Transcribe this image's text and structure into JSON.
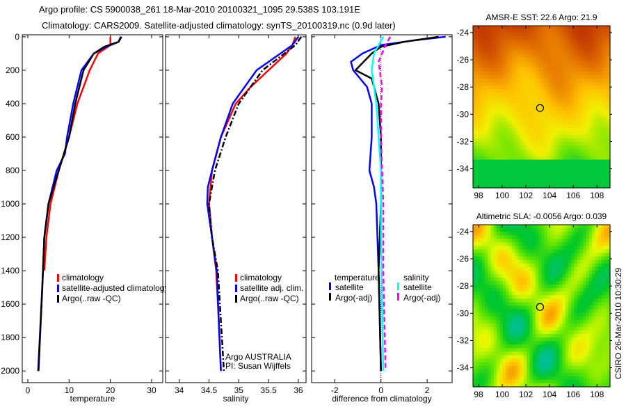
{
  "header": {
    "title_line1": "Argo profile: CS 5900038_261 18-Mar-2010 20100321_1095 29.538S 103.191E",
    "title_line2": "Climatology: CARS2009. Satellite-adjusted climatology: synTS_20100319.nc (0.9d later)"
  },
  "credit": "CSIRO 26-Mar-2010 10:30:29",
  "colors": {
    "red": "#ff0000",
    "blue": "#0000ff",
    "black": "#000000",
    "cyan": "#00ffff",
    "magenta": "#ff00ff"
  },
  "chart_data": [
    {
      "type": "line",
      "id": "temperature",
      "xlabel": "temperature",
      "ylabel": "",
      "xlim": [
        -1.35,
        32.7
      ],
      "ylim": [
        2070,
        -12
      ],
      "xticks": [
        0,
        10,
        20,
        30
      ],
      "yticks": [
        0,
        200,
        400,
        600,
        800,
        1000,
        1200,
        1400,
        1600,
        1800,
        2000
      ],
      "legend": {
        "placement": "lower-center",
        "entries": [
          "climatology",
          "satellite-adjusted climatology",
          "Argo(..raw -QC)"
        ]
      },
      "series": [
        {
          "name": "climatology",
          "color": "#ff0000",
          "style": "solid",
          "depth": [
            0,
            50,
            100,
            200,
            300,
            400,
            600,
            800,
            1000,
            1200,
            1400
          ],
          "values": [
            20,
            20,
            17,
            15,
            13.5,
            12,
            10,
            7.5,
            5.5,
            4.5,
            4
          ]
        },
        {
          "name": "satellite-adjusted climatology",
          "color": "#0000ff",
          "style": "solid",
          "depth": [
            0,
            30,
            60,
            100,
            200,
            400,
            600,
            700,
            800,
            900,
            1000,
            1200,
            1500,
            2000
          ],
          "values": [
            22.5,
            22,
            19,
            16,
            13,
            11,
            9.5,
            9,
            7,
            6,
            5,
            4,
            3.5,
            2.5
          ]
        },
        {
          "name": "Argo(..raw -QC)",
          "color": "#000000",
          "style": "solid",
          "depth": [
            0,
            30,
            60,
            100,
            200,
            400,
            600,
            800,
            1000,
            1200,
            1500,
            2000
          ],
          "values": [
            22.7,
            22,
            18.5,
            16,
            13.5,
            11.5,
            10,
            7.5,
            5,
            4,
            3.5,
            2.6
          ]
        }
      ]
    },
    {
      "type": "line",
      "id": "salinity",
      "xlabel": "salinity",
      "xlim": [
        33.77,
        36.13
      ],
      "ylim": [
        2070,
        -12
      ],
      "xticks": [
        34,
        34.5,
        35,
        35.5,
        36
      ],
      "yticks": [
        0,
        200,
        400,
        600,
        800,
        1000,
        1200,
        1400,
        1600,
        1800,
        2000
      ],
      "legend": {
        "placement": "lower-right",
        "entries": [
          "climatology",
          "satellite adj. clim.",
          "Argo(..raw -QC)"
        ]
      },
      "annotation": [
        "Argo AUSTRALIA",
        "PI: Susan Wijffels"
      ],
      "series": [
        {
          "name": "climatology",
          "color": "#ff0000",
          "style": "solid",
          "depth": [
            0,
            50,
            100,
            200,
            300,
            400,
            600,
            800,
            1000,
            1200,
            1400,
            1600,
            2000
          ],
          "values": [
            35.95,
            35.9,
            35.8,
            35.5,
            35.2,
            34.95,
            34.7,
            34.55,
            34.5,
            34.55,
            34.62,
            34.65,
            34.7
          ]
        },
        {
          "name": "satellite adj. clim.",
          "color": "#0000ff",
          "style": "solid",
          "depth": [
            0,
            50,
            100,
            200,
            300,
            400,
            600,
            800,
            900,
            1000,
            1200,
            1400,
            2000
          ],
          "values": [
            36.0,
            35.9,
            35.7,
            35.3,
            35.1,
            34.9,
            34.7,
            34.55,
            34.48,
            34.47,
            34.55,
            34.63,
            34.7
          ]
        },
        {
          "name": "Argo(..raw -QC)",
          "color": "#000000",
          "style": "dashdot",
          "depth": [
            0,
            50,
            200,
            400,
            600,
            800,
            1000,
            1200,
            1400,
            2000
          ],
          "values": [
            36.05,
            35.95,
            35.4,
            35.0,
            34.78,
            34.6,
            34.5,
            34.55,
            34.65,
            34.75
          ]
        }
      ]
    },
    {
      "type": "line",
      "id": "difference",
      "xlabel": "difference from climatology",
      "xlim": [
        -3,
        3.08
      ],
      "ylim": [
        2070,
        -12
      ],
      "xticks": [
        -2,
        0,
        2
      ],
      "yticks": [
        0,
        200,
        400,
        600,
        800,
        1000,
        1200,
        1400,
        1600,
        1800,
        2000
      ],
      "legend": {
        "placement": "center",
        "groups": [
          {
            "title": "temperature",
            "entries": [
              "satellite",
              "Argo(-adj)"
            ]
          },
          {
            "title": "salinity",
            "entries": [
              "satellite",
              "Argo(-adj)"
            ]
          }
        ]
      },
      "series": [
        {
          "name": "temperature satellite",
          "color": "#0000ff",
          "style": "solid",
          "depth": [
            0,
            20,
            50,
            100,
            150,
            200,
            300,
            400,
            600,
            800,
            900,
            1000,
            1400,
            2000
          ],
          "values": [
            2.8,
            1.5,
            0,
            -0.8,
            -1.3,
            -1.2,
            -0.6,
            -0.4,
            -0.4,
            -0.5,
            -0.3,
            -0.2,
            -0.1,
            0
          ]
        },
        {
          "name": "temperature Argo(-adj)",
          "color": "#000000",
          "style": "solid",
          "depth": [
            0,
            30,
            60,
            100,
            200,
            250,
            400,
            600,
            800,
            1000,
            1400,
            2000
          ],
          "values": [
            2.5,
            1.0,
            0,
            -0.4,
            -1.1,
            -0.4,
            -0.1,
            0,
            0,
            0,
            -0.1,
            0
          ]
        },
        {
          "name": "salinity satellite",
          "color": "#00ffff",
          "style": "solid",
          "depth": [
            0,
            100,
            200,
            400,
            600,
            800,
            1200,
            2000
          ],
          "values": [
            0.1,
            -0.3,
            -0.4,
            -0.2,
            -0.1,
            0,
            0,
            0.1
          ]
        },
        {
          "name": "salinity Argo(-adj)",
          "color": "#ff00ff",
          "style": "dashed",
          "depth": [
            0,
            50,
            150,
            300,
            400,
            600,
            1000,
            1400,
            2000
          ],
          "values": [
            0.4,
            0.2,
            -0.1,
            0.05,
            0,
            0,
            0.1,
            0.1,
            0.2
          ]
        }
      ]
    },
    {
      "type": "heatmap",
      "id": "sst-map",
      "title": "AMSR-E SST: 22.6 Argo: 21.9",
      "xlim": [
        97.53,
        109.1
      ],
      "ylim": [
        -23.5,
        -35.4
      ],
      "xticks": [
        98,
        100,
        102,
        104,
        106,
        108
      ],
      "yticks": [
        -24,
        -26,
        -28,
        -30,
        -32,
        -34
      ],
      "marker": {
        "lon": 103.191,
        "lat": -29.538
      }
    },
    {
      "type": "heatmap",
      "id": "sla-map",
      "title": "Altimetric SLA: -0.0056 Argo: 0.039",
      "xlim": [
        97.53,
        109.1
      ],
      "ylim": [
        -23.5,
        -35.4
      ],
      "xticks": [
        98,
        100,
        102,
        104,
        106,
        108
      ],
      "yticks": [
        -24,
        -26,
        -28,
        -30,
        -32,
        -34
      ],
      "marker": {
        "lon": 103.191,
        "lat": -29.538
      }
    }
  ]
}
